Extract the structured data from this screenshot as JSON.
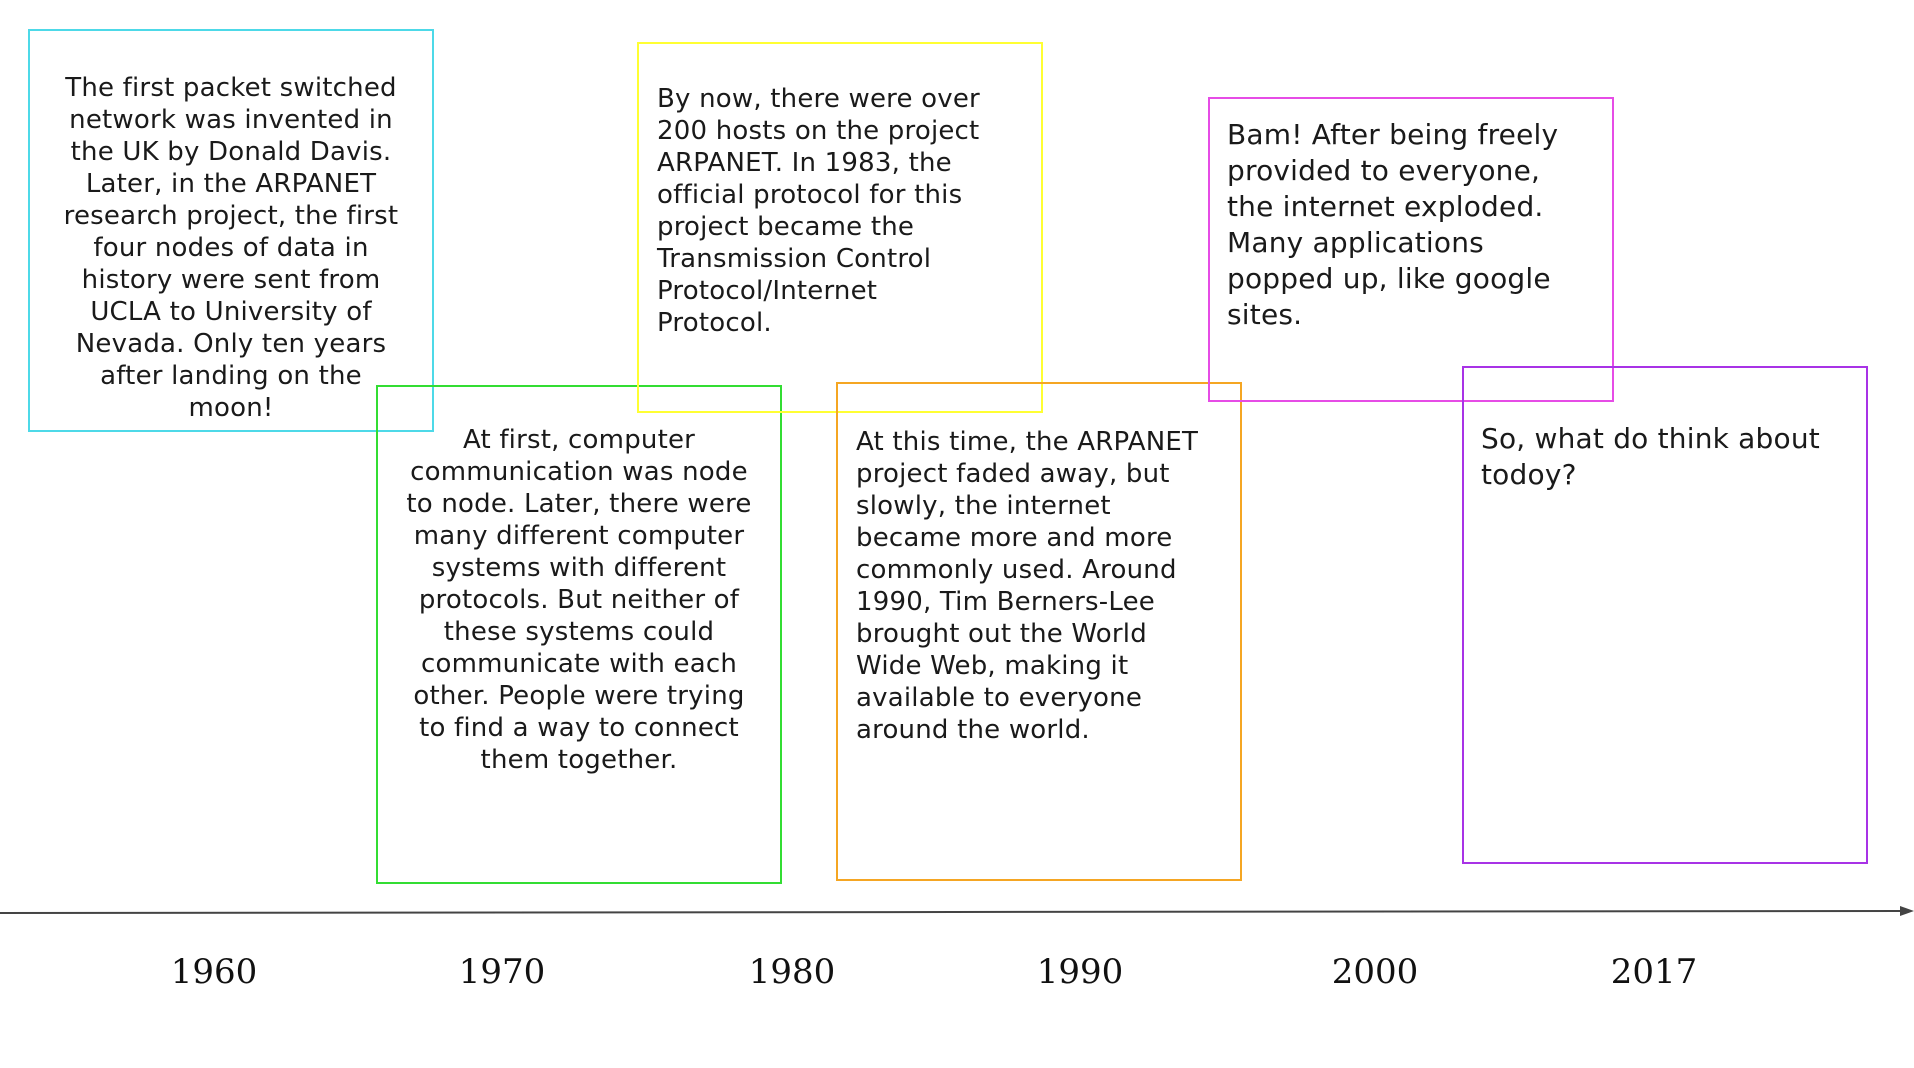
{
  "events": [
    {
      "text": "The first packet switched\nnetwork was invented in\nthe UK by Donald Davis.\nLater, in the ARPANET\nresearch project, the first\nfour nodes of data in\nhistory were sent from\nUCLA to University of\nNevada. Only ten years\nafter landing on the\nmoon!",
      "border_color": "#4dd9e8"
    },
    {
      "text": "At first, computer\ncommunication was node\nto node. Later, there were\nmany different computer\nsystems with different\nprotocols. But neither of\nthese systems could\ncommunicate with each\nother. People were trying\nto find a way to connect\nthem together.",
      "border_color": "#33dd33"
    },
    {
      "text": "By now, there were over\n200 hosts on the project\nARPANET. In 1983, the\nofficial protocol for this\nproject became the\nTransmission Control\nProtocol/Internet\nProtocol.",
      "border_color": "#ffff33"
    },
    {
      "text": "At this time, the ARPANET\nproject faded away, but\nslowly, the internet\nbecame more and more\ncommonly used. Around\n1990, Tim Berners-Lee\nbrought out the World\nWide Web, making it\navailable to everyone\naround the world.",
      "border_color": "#f5a623"
    },
    {
      "text": "Bam! After being freely\nprovided to everyone,\nthe internet exploded.\nMany applications\npopped up, like google\nsites.",
      "border_color": "#e64ce6"
    },
    {
      "text": "So, what do think about\ntodoy?",
      "border_color": "#a833e6"
    }
  ],
  "timeline": {
    "years": [
      "1960",
      "1970",
      "1980",
      "1990",
      "2000",
      "2017"
    ],
    "axis_color": "#444444"
  }
}
